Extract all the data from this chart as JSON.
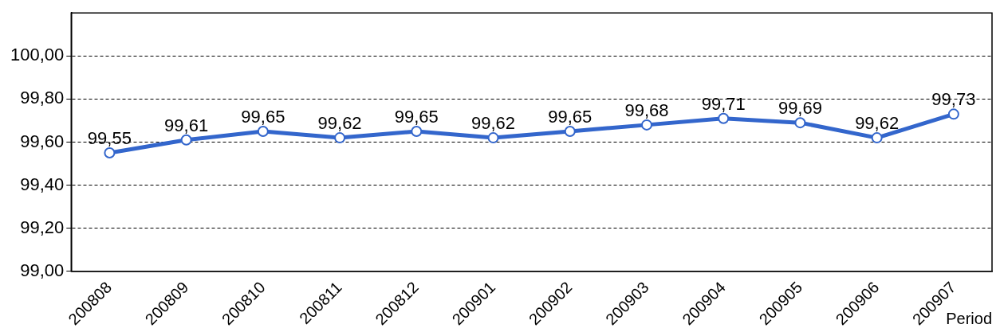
{
  "chart_data": {
    "type": "line",
    "xlabel": "Period",
    "categories": [
      "200808",
      "200809",
      "200810",
      "200811",
      "200812",
      "200901",
      "200902",
      "200903",
      "200904",
      "200905",
      "200906",
      "200907"
    ],
    "series": [
      {
        "color": "#3366cc",
        "values": [
          99.55,
          99.61,
          99.65,
          99.62,
          99.65,
          99.62,
          99.65,
          99.68,
          99.71,
          99.69,
          99.62,
          99.73
        ],
        "value_labels": [
          "99,55",
          "99,61",
          "99,65",
          "99,62",
          "99,65",
          "99,62",
          "99,65",
          "99,68",
          "99,71",
          "99,69",
          "99,62",
          "99,73"
        ]
      }
    ],
    "ylim": [
      99,
      100.2
    ],
    "yticks": [
      {
        "value": 99,
        "label": "99,00"
      },
      {
        "value": 99.2,
        "label": "99,20"
      },
      {
        "value": 99.4,
        "label": "99,40"
      },
      {
        "value": 99.6,
        "label": "99,60"
      },
      {
        "value": 99.8,
        "label": "99,80"
      },
      {
        "value": 100,
        "label": "100,00"
      }
    ],
    "grid": "y",
    "legend": false,
    "marker": "circle",
    "line_style": "solid"
  }
}
